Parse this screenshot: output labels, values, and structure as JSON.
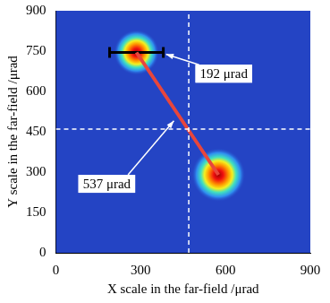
{
  "chart_data": {
    "type": "scatter",
    "x_label": "X scale in the far-field /μrad",
    "y_label": "Y scale in the far-field /μrad",
    "x": [
      285,
      575
    ],
    "values": [
      745,
      290
    ],
    "spot_size": [
      80,
      95
    ],
    "xlim": [
      0,
      900
    ],
    "ylim": [
      0,
      900
    ],
    "xticks": [
      0,
      300,
      600,
      900
    ],
    "yticks": [
      0,
      150,
      300,
      450,
      600,
      750,
      900
    ],
    "grid": false,
    "vlines": [
      470
    ],
    "hlines": [
      460
    ],
    "width_bar": {
      "x": [
        190,
        380
      ],
      "y": 745,
      "label": "192 μrad"
    },
    "separation": {
      "label": "537 μrad",
      "color": "#e8463c"
    }
  }
}
